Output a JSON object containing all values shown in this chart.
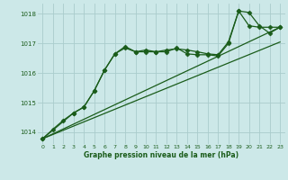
{
  "bg_color": "#cce8e8",
  "grid_color": "#aacccc",
  "line_color": "#1a5c1a",
  "title": "Graphe pression niveau de la mer (hPa)",
  "xlim": [
    -0.5,
    23.5
  ],
  "ylim": [
    1013.6,
    1018.35
  ],
  "yticks": [
    1014,
    1015,
    1016,
    1017,
    1018
  ],
  "xticks": [
    0,
    1,
    2,
    3,
    4,
    5,
    6,
    7,
    8,
    9,
    10,
    11,
    12,
    13,
    14,
    15,
    16,
    17,
    18,
    19,
    20,
    21,
    22,
    23
  ],
  "series": [
    {
      "x": [
        0,
        1,
        2,
        3,
        4,
        5,
        6,
        7,
        8,
        9,
        10,
        11,
        12,
        13,
        14,
        15,
        16,
        17,
        18,
        19,
        20,
        21,
        22,
        23
      ],
      "y": [
        1013.78,
        1014.1,
        1014.4,
        1014.65,
        1014.85,
        1015.4,
        1016.1,
        1016.65,
        1016.9,
        1016.72,
        1016.78,
        1016.72,
        1016.78,
        1016.82,
        1016.78,
        1016.72,
        1016.65,
        1016.62,
        1017.05,
        1018.1,
        1018.05,
        1017.6,
        1017.35,
        1017.55
      ],
      "marker": "D",
      "markersize": 2.5,
      "linewidth": 0.9,
      "has_marker": true
    },
    {
      "x": [
        0,
        3,
        4,
        5,
        6,
        7,
        8,
        9,
        10,
        11,
        12,
        13,
        14,
        15,
        16,
        17,
        18,
        19,
        20,
        21,
        22,
        23
      ],
      "y": [
        1013.78,
        1014.65,
        1014.85,
        1015.4,
        1016.1,
        1016.65,
        1016.85,
        1016.72,
        1016.72,
        1016.72,
        1016.72,
        1016.85,
        1016.65,
        1016.62,
        1016.62,
        1016.58,
        1017.0,
        1018.1,
        1017.6,
        1017.55,
        1017.55,
        1017.55
      ],
      "marker": "D",
      "markersize": 2.5,
      "linewidth": 0.9,
      "has_marker": true
    },
    {
      "x": [
        0,
        23
      ],
      "y": [
        1013.78,
        1017.55
      ],
      "marker": null,
      "markersize": 0,
      "linewidth": 0.9,
      "has_marker": false
    },
    {
      "x": [
        0,
        23
      ],
      "y": [
        1013.78,
        1017.05
      ],
      "marker": null,
      "markersize": 0,
      "linewidth": 0.9,
      "has_marker": false
    }
  ]
}
